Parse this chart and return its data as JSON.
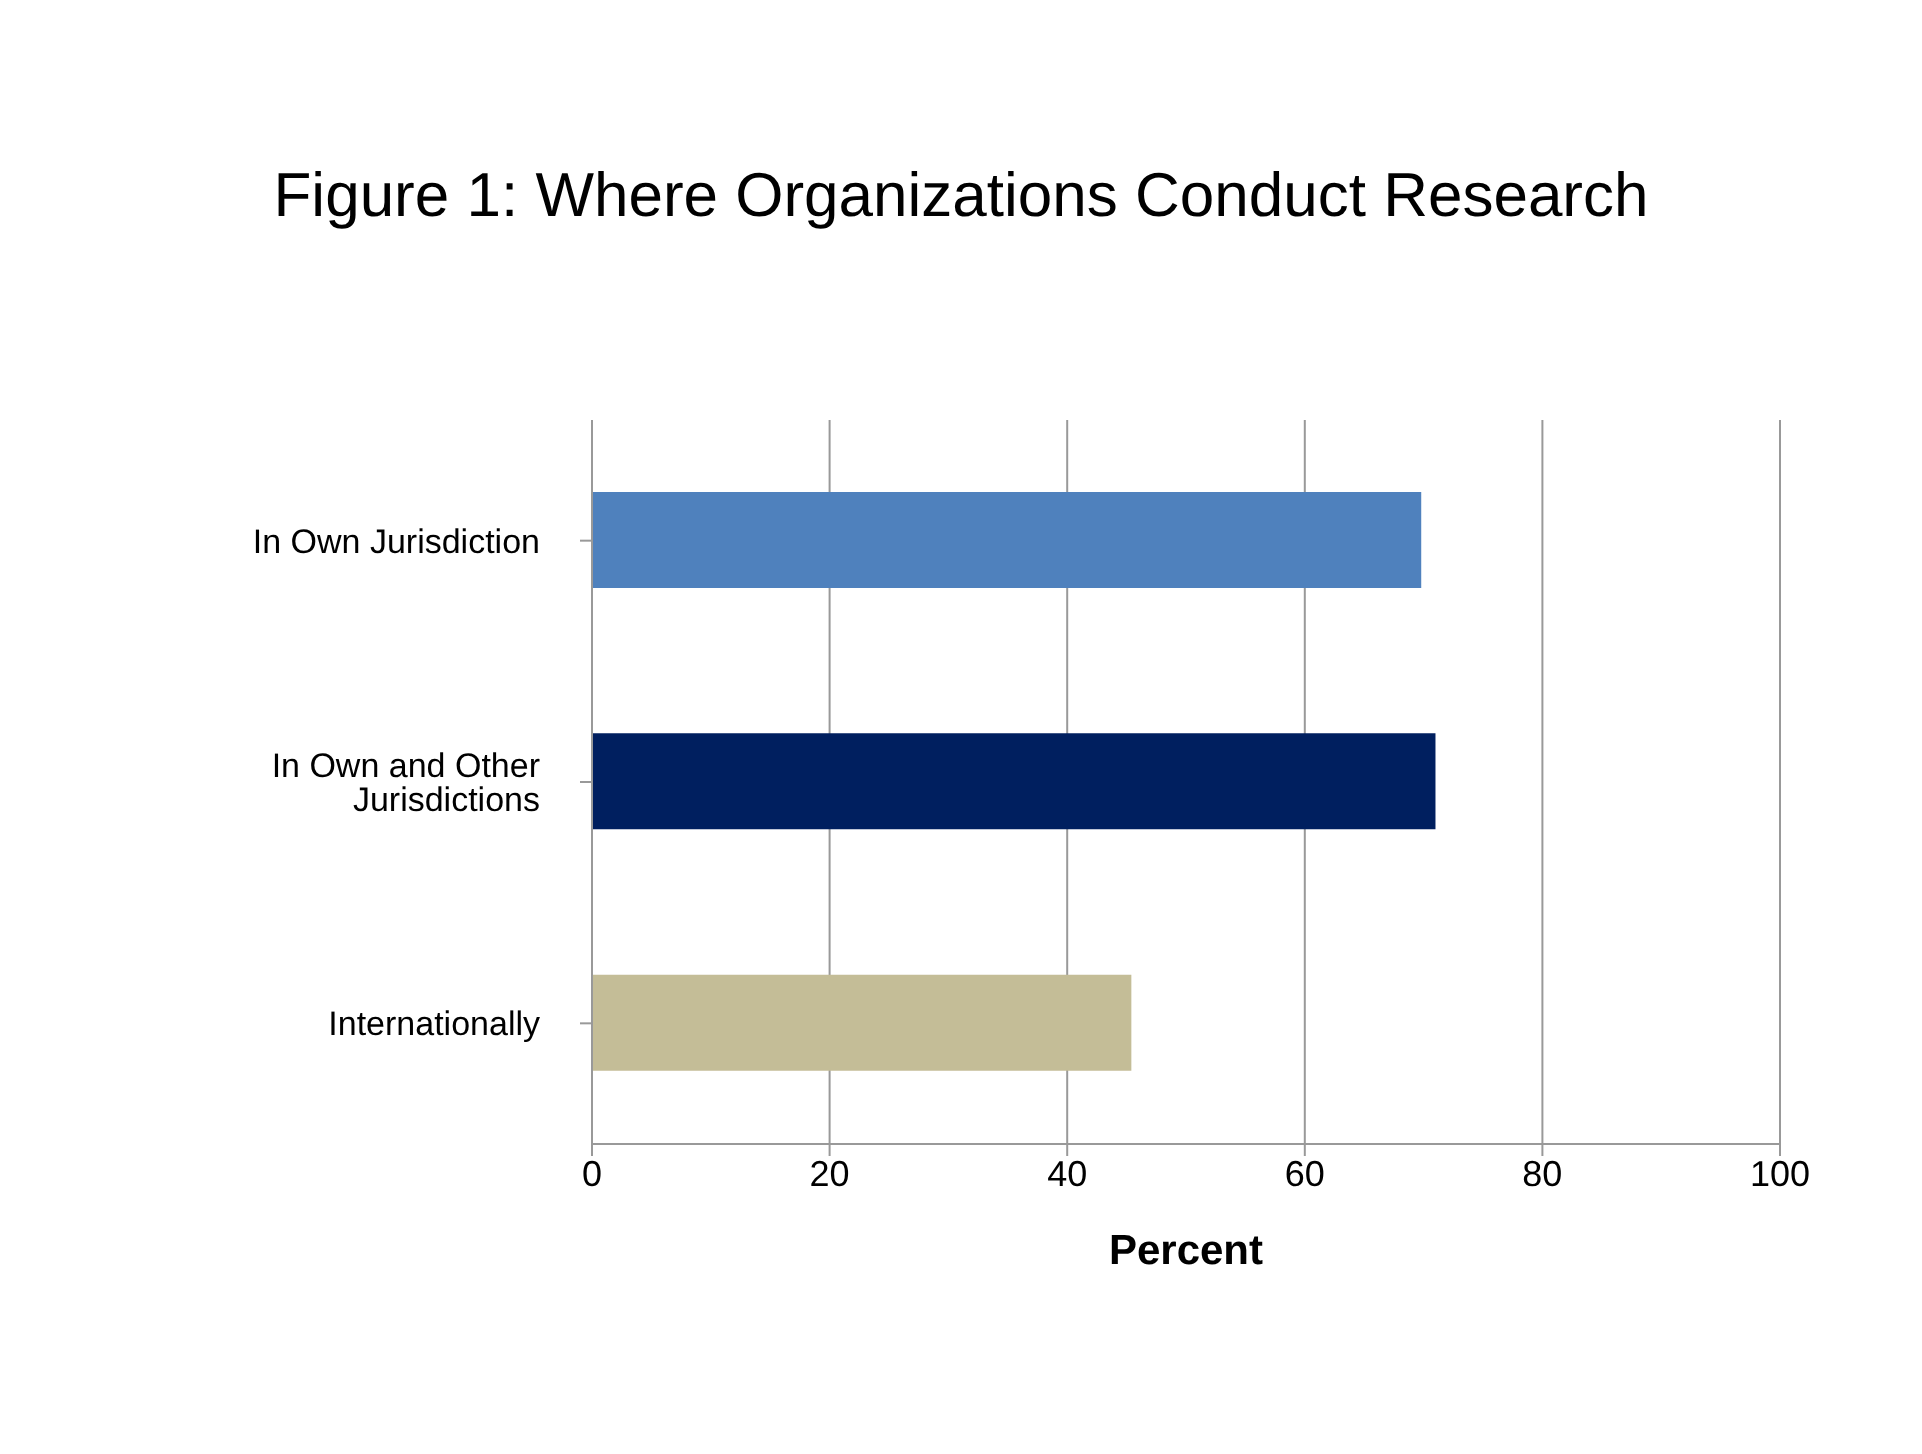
{
  "chart_data": {
    "type": "bar",
    "orientation": "horizontal",
    "title": "Figure 1: Where Organizations Conduct Research",
    "xlabel": "Percent",
    "categories": [
      "In Own Jurisdiction",
      "In Own and Other Jurisdictions",
      "Internationally"
    ],
    "values": [
      69.8,
      71,
      45.4
    ],
    "colors": [
      "#4f81bd",
      "#001f5f",
      "#c4bd97"
    ],
    "xlim": [
      0,
      100
    ],
    "xticks": [
      0,
      20,
      40,
      60,
      80,
      100
    ],
    "grid": "x",
    "legend": false
  }
}
